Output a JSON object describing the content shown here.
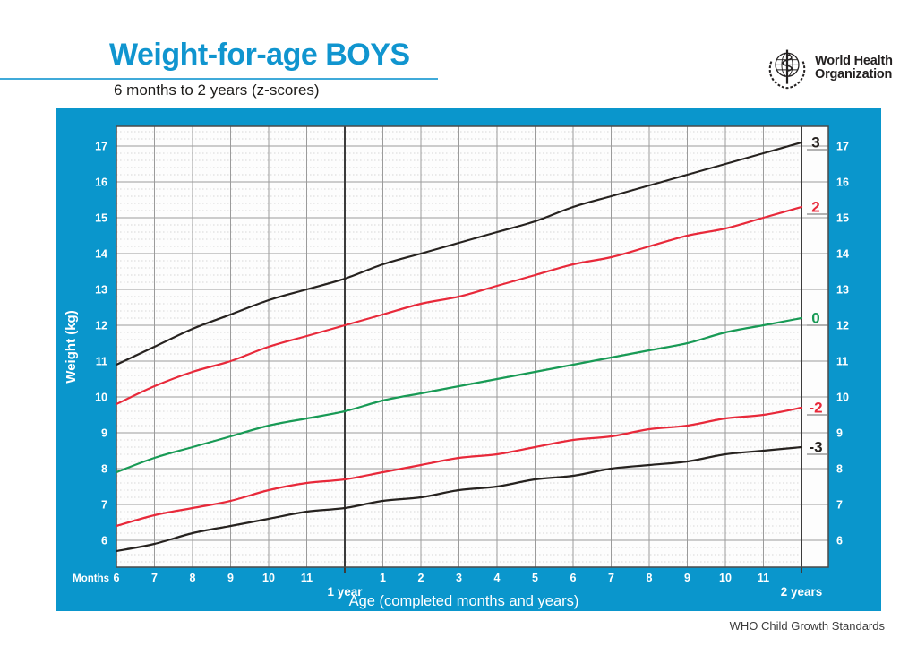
{
  "header": {
    "title": "Weight-for-age BOYS",
    "subtitle": "6 months to 2 years (z-scores)",
    "logo": {
      "line1": "World Health",
      "line2": "Organization"
    }
  },
  "footer": {
    "text": "WHO Child Growth Standards"
  },
  "colors": {
    "panel_blue": "#0a96cc",
    "title_blue": "#1095cf",
    "z_red": "#e8293a",
    "z_green": "#189a55",
    "z_black": "#26221f",
    "grid_major": "#9b9b9b",
    "grid_minor": "#c9c9c9",
    "year_line": "#3c3c3c",
    "plot_border": "#4a4a4a",
    "leader_dash": "#666666"
  },
  "chart_data": {
    "type": "line",
    "title": "Weight-for-age BOYS",
    "subtitle": "6 months to 2 years (z-scores)",
    "xlabel": "Age (completed months and years)",
    "ylabel": "Weight (kg)",
    "x_axis_unit": "Months",
    "x_months": [
      6,
      7,
      8,
      9,
      10,
      11,
      12,
      13,
      14,
      15,
      16,
      17,
      18,
      19,
      20,
      21,
      22,
      23,
      24
    ],
    "x_tick_labels": [
      "6",
      "7",
      "8",
      "9",
      "10",
      "11",
      "",
      "1",
      "2",
      "3",
      "4",
      "5",
      "6",
      "7",
      "8",
      "9",
      "10",
      "11",
      ""
    ],
    "year_marks": [
      {
        "month": 12,
        "label": "1 year"
      },
      {
        "month": 24,
        "label": "2 years"
      }
    ],
    "y_ticks": [
      6,
      7,
      8,
      9,
      10,
      11,
      12,
      13,
      14,
      15,
      16,
      17
    ],
    "ylim": [
      5.25,
      17.55
    ],
    "xlim": [
      6,
      24.7
    ],
    "grid": "on",
    "legend": "z-score labels at right curve ends",
    "series": [
      {
        "name": "3",
        "color": "#26221f",
        "values": [
          10.9,
          11.4,
          11.9,
          12.3,
          12.7,
          13.0,
          13.3,
          13.7,
          14.0,
          14.3,
          14.6,
          14.9,
          15.3,
          15.6,
          15.9,
          16.2,
          16.5,
          16.8,
          17.1
        ]
      },
      {
        "name": "2",
        "color": "#e8293a",
        "values": [
          9.8,
          10.3,
          10.7,
          11.0,
          11.4,
          11.7,
          12.0,
          12.3,
          12.6,
          12.8,
          13.1,
          13.4,
          13.7,
          13.9,
          14.2,
          14.5,
          14.7,
          15.0,
          15.3
        ]
      },
      {
        "name": "0",
        "color": "#189a55",
        "values": [
          7.9,
          8.3,
          8.6,
          8.9,
          9.2,
          9.4,
          9.6,
          9.9,
          10.1,
          10.3,
          10.5,
          10.7,
          10.9,
          11.1,
          11.3,
          11.5,
          11.8,
          12.0,
          12.2
        ]
      },
      {
        "name": "-2",
        "color": "#e8293a",
        "values": [
          6.4,
          6.7,
          6.9,
          7.1,
          7.4,
          7.6,
          7.7,
          7.9,
          8.1,
          8.3,
          8.4,
          8.6,
          8.8,
          8.9,
          9.1,
          9.2,
          9.4,
          9.5,
          9.7
        ]
      },
      {
        "name": "-3",
        "color": "#26221f",
        "values": [
          5.7,
          5.9,
          6.2,
          6.4,
          6.6,
          6.8,
          6.9,
          7.1,
          7.2,
          7.4,
          7.5,
          7.7,
          7.8,
          8.0,
          8.1,
          8.2,
          8.4,
          8.5,
          8.6
        ]
      }
    ]
  }
}
